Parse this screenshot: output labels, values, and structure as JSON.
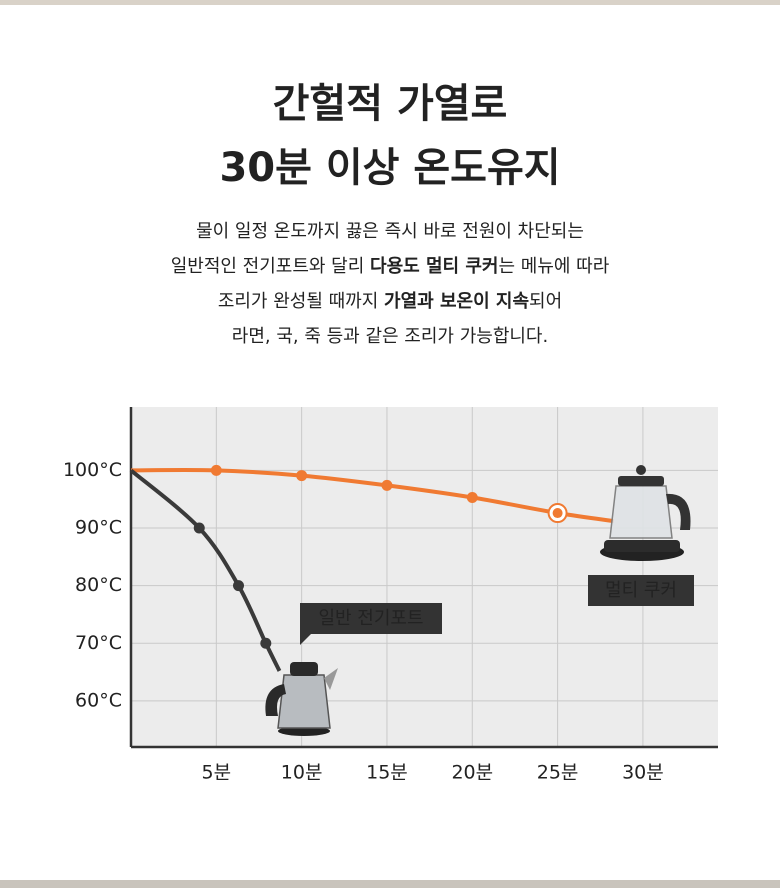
{
  "heading": [
    "간헐적 가열로",
    "30분 이상 온도유지"
  ],
  "description": [
    [
      {
        "text": "물이 일정 온도까지 끓은 즉시 바로 전원이 차단되는",
        "bold": false
      }
    ],
    [
      {
        "text": "일반적인 전기포트와 달리 ",
        "bold": false
      },
      {
        "text": "다용도 멀티 쿠커",
        "bold": true
      },
      {
        "text": "는 메뉴에 따라",
        "bold": false
      }
    ],
    [
      {
        "text": "조리가 완성될 때까지 ",
        "bold": false
      },
      {
        "text": "가열과 보온이 지속",
        "bold": true
      },
      {
        "text": "되어",
        "bold": false
      }
    ],
    [
      {
        "text": "라면, 국, 죽 등과 같은 조리가 가능합니다.",
        "bold": false
      }
    ]
  ],
  "chart_data": {
    "type": "line",
    "xlim": [
      0,
      34.4
    ],
    "ylim": [
      52,
      111
    ],
    "xticks": [
      {
        "value": 5,
        "label": "5분"
      },
      {
        "value": 10,
        "label": "10분"
      },
      {
        "value": 15,
        "label": "15분"
      },
      {
        "value": 20,
        "label": "20분"
      },
      {
        "value": 25,
        "label": "25분"
      },
      {
        "value": 30,
        "label": "30분"
      }
    ],
    "yticks": [
      {
        "value": 100,
        "label": "100°C"
      },
      {
        "value": 90,
        "label": "90°C"
      },
      {
        "value": 80,
        "label": "80°C"
      },
      {
        "value": 70,
        "label": "70°C"
      },
      {
        "value": 60,
        "label": "60°C"
      }
    ],
    "grid": true,
    "series": [
      {
        "name": "멀티 쿠커",
        "color": "#f07a32",
        "x": [
          0,
          5,
          10,
          15,
          20,
          25,
          28.3
        ],
        "values": [
          100,
          100,
          99.1,
          97.4,
          95.3,
          92.6,
          91.2
        ]
      },
      {
        "name": "일반 전기포트",
        "color": "#3a3a3a",
        "x": [
          0,
          4,
          6.3,
          7.9,
          8.7
        ],
        "values": [
          100,
          90,
          80,
          70,
          65.2
        ]
      }
    ]
  }
}
